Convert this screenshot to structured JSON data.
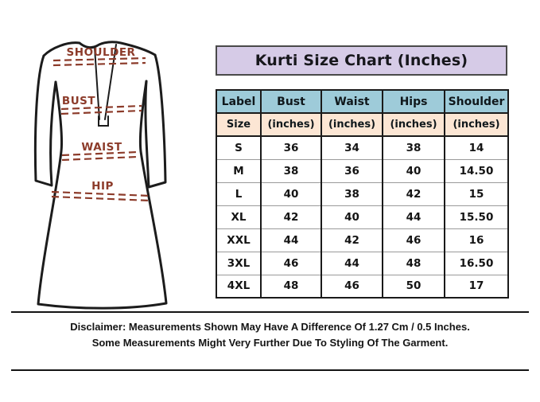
{
  "illustration": {
    "shoulder_label": "SHOULDER",
    "bust_label": "BUST",
    "waist_label": "WAIST",
    "hip_label": "HIP",
    "label_color": "#8c3b2a",
    "outline_color": "#1c1c1c"
  },
  "size_chart": {
    "title": "Kurti Size Chart (Inches)",
    "columns": [
      "Label",
      "Bust",
      "Waist",
      "Hips",
      "Shoulder"
    ],
    "subheader": [
      "Size",
      "(inches)",
      "(inches)",
      "(inches)",
      "(inches)"
    ],
    "rows": [
      [
        "S",
        "36",
        "34",
        "38",
        "14"
      ],
      [
        "M",
        "38",
        "36",
        "40",
        "14.50"
      ],
      [
        "L",
        "40",
        "38",
        "42",
        "15"
      ],
      [
        "XL",
        "42",
        "40",
        "44",
        "15.50"
      ],
      [
        "XXL",
        "44",
        "42",
        "46",
        "16"
      ],
      [
        "3XL",
        "46",
        "44",
        "48",
        "16.50"
      ],
      [
        "4XL",
        "48",
        "46",
        "50",
        "17"
      ]
    ],
    "colors": {
      "title_bg": "#d6cbe7",
      "header_bg": "#9ecbd9",
      "subheader_bg": "#fce6d4",
      "border": "#1a1a1a"
    }
  },
  "disclaimer": {
    "line1": "Disclaimer: Measurements Shown May Have A Difference Of 1.27 Cm / 0.5 Inches.",
    "line2": "Some Measurements Might Very Further Due To Styling Of The Garment."
  }
}
